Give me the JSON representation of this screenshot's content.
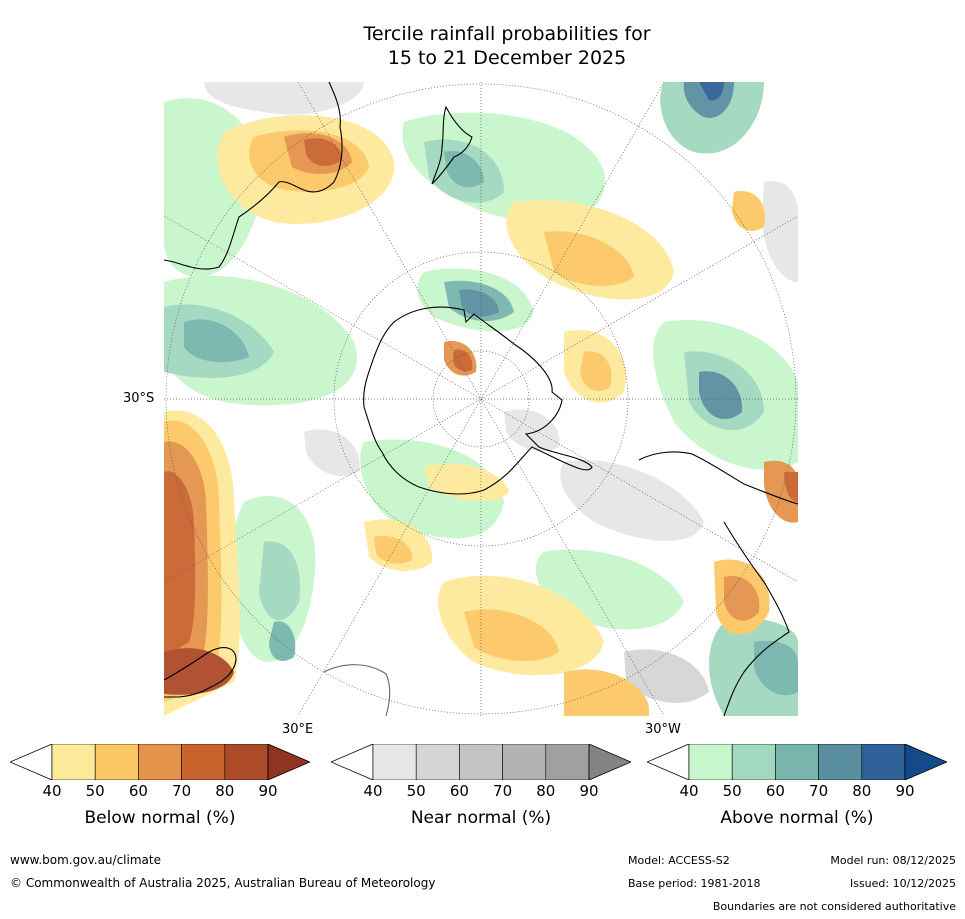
{
  "title": {
    "line1": "Tercile rainfall probabilities for",
    "line2": "15 to 21 December 2025"
  },
  "map": {
    "lat_label": "30°S",
    "lon_label_east": "30°E",
    "lon_label_west": "30°W",
    "colors": {
      "ocean_base": "#ffffff",
      "land_outline": "#000000",
      "graticule": "#555555"
    }
  },
  "colorbars": [
    {
      "label": "Below normal (%)",
      "ticks": [
        "40",
        "50",
        "60",
        "70",
        "80",
        "90"
      ],
      "colors": [
        "#ffffff",
        "#fde99a",
        "#fcc866",
        "#e3934a",
        "#c9642f",
        "#ad4a28",
        "#8f3420"
      ]
    },
    {
      "label": "Near normal (%)",
      "ticks": [
        "40",
        "50",
        "60",
        "70",
        "80",
        "90"
      ],
      "colors": [
        "#ffffff",
        "#e6e6e6",
        "#d5d5d5",
        "#c4c4c4",
        "#b2b2b2",
        "#a0a0a0",
        "#838383"
      ]
    },
    {
      "label": "Above normal (%)",
      "ticks": [
        "40",
        "50",
        "60",
        "70",
        "80",
        "90"
      ],
      "colors": [
        "#ffffff",
        "#c8f6cc",
        "#a1d8bf",
        "#78b6ad",
        "#5a8fa1",
        "#2f6097",
        "#124a8a"
      ]
    }
  ],
  "footer": {
    "url": "www.bom.gov.au/climate",
    "copyright": "© Commonwealth of Australia 2025, Australian Bureau of Meteorology",
    "model": "Model: ACCESS-S2",
    "base_period": "Base period: 1981-2018",
    "model_run": "Model run: 08/12/2025",
    "issued": "Issued: 10/12/2025",
    "disclaimer": "Boundaries are not considered authoritative"
  }
}
